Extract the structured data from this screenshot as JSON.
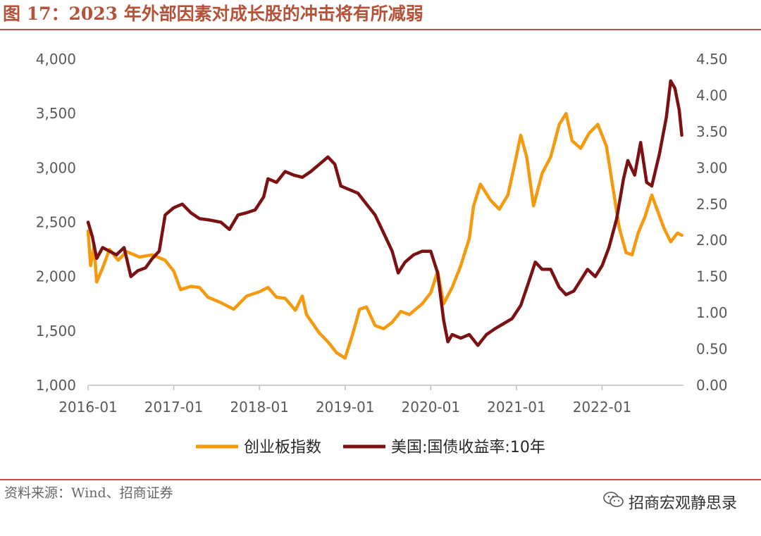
{
  "figure": {
    "title": "图 17：2023 年外部因素对成长股的冲击将有所减弱",
    "source": "资料来源：Wind、招商证券",
    "watermark": "招商宏观静思录"
  },
  "colors": {
    "accent": "#c0504d",
    "title": "#b5533a",
    "series_chinext": "#f59a0f",
    "series_ust": "#7b1113",
    "axis": "#bfbfbf",
    "tick_text": "#595959"
  },
  "chart_data": {
    "type": "line",
    "title": "",
    "xlabel": "",
    "x_ticks": [
      "2016-01",
      "2017-01",
      "2018-01",
      "2019-01",
      "2020-01",
      "2021-01",
      "2022-01"
    ],
    "x_range": [
      2016.0,
      2022.95
    ],
    "y_left": {
      "range": [
        1000,
        4000
      ],
      "ticks": [
        "1,000",
        "1,500",
        "2,000",
        "2,500",
        "3,000",
        "3,500",
        "4,000"
      ]
    },
    "y_right": {
      "range": [
        0,
        4.5
      ],
      "ticks": [
        "0.00",
        "0.50",
        "1.00",
        "1.50",
        "2.00",
        "2.50",
        "3.00",
        "3.50",
        "4.00",
        "4.50"
      ]
    },
    "legend": [
      "创业板指数",
      "美国:国债收益率:10年"
    ],
    "series": [
      {
        "name": "创业板指数",
        "axis": "left",
        "points": [
          [
            2016.0,
            2420
          ],
          [
            2016.03,
            2100
          ],
          [
            2016.07,
            2280
          ],
          [
            2016.1,
            1950
          ],
          [
            2016.17,
            2080
          ],
          [
            2016.25,
            2250
          ],
          [
            2016.35,
            2150
          ],
          [
            2016.45,
            2230
          ],
          [
            2016.6,
            2180
          ],
          [
            2016.75,
            2200
          ],
          [
            2016.9,
            2150
          ],
          [
            2017.0,
            2050
          ],
          [
            2017.08,
            1880
          ],
          [
            2017.2,
            1910
          ],
          [
            2017.3,
            1900
          ],
          [
            2017.4,
            1810
          ],
          [
            2017.55,
            1760
          ],
          [
            2017.7,
            1700
          ],
          [
            2017.85,
            1820
          ],
          [
            2018.0,
            1860
          ],
          [
            2018.1,
            1900
          ],
          [
            2018.2,
            1810
          ],
          [
            2018.3,
            1800
          ],
          [
            2018.42,
            1690
          ],
          [
            2018.5,
            1820
          ],
          [
            2018.55,
            1650
          ],
          [
            2018.7,
            1480
          ],
          [
            2018.8,
            1400
          ],
          [
            2018.9,
            1300
          ],
          [
            2019.0,
            1250
          ],
          [
            2019.08,
            1450
          ],
          [
            2019.17,
            1700
          ],
          [
            2019.25,
            1720
          ],
          [
            2019.35,
            1550
          ],
          [
            2019.45,
            1520
          ],
          [
            2019.55,
            1580
          ],
          [
            2019.65,
            1680
          ],
          [
            2019.75,
            1650
          ],
          [
            2019.9,
            1750
          ],
          [
            2020.0,
            1850
          ],
          [
            2020.08,
            2050
          ],
          [
            2020.15,
            1750
          ],
          [
            2020.25,
            1900
          ],
          [
            2020.35,
            2100
          ],
          [
            2020.45,
            2350
          ],
          [
            2020.5,
            2650
          ],
          [
            2020.58,
            2850
          ],
          [
            2020.7,
            2700
          ],
          [
            2020.8,
            2620
          ],
          [
            2020.9,
            2750
          ],
          [
            2020.97,
            3000
          ],
          [
            2021.05,
            3300
          ],
          [
            2021.12,
            3100
          ],
          [
            2021.2,
            2650
          ],
          [
            2021.3,
            2950
          ],
          [
            2021.4,
            3100
          ],
          [
            2021.5,
            3400
          ],
          [
            2021.58,
            3500
          ],
          [
            2021.65,
            3250
          ],
          [
            2021.75,
            3180
          ],
          [
            2021.85,
            3320
          ],
          [
            2021.95,
            3400
          ],
          [
            2022.05,
            3200
          ],
          [
            2022.12,
            2850
          ],
          [
            2022.2,
            2450
          ],
          [
            2022.28,
            2220
          ],
          [
            2022.35,
            2200
          ],
          [
            2022.42,
            2400
          ],
          [
            2022.5,
            2550
          ],
          [
            2022.58,
            2750
          ],
          [
            2022.65,
            2600
          ],
          [
            2022.72,
            2450
          ],
          [
            2022.8,
            2320
          ],
          [
            2022.88,
            2400
          ],
          [
            2022.93,
            2380
          ]
        ]
      },
      {
        "name": "美国:国债收益率:10年",
        "axis": "right",
        "points": [
          [
            2016.0,
            2.25
          ],
          [
            2016.05,
            2.05
          ],
          [
            2016.1,
            1.75
          ],
          [
            2016.17,
            1.9
          ],
          [
            2016.25,
            1.85
          ],
          [
            2016.33,
            1.8
          ],
          [
            2016.42,
            1.9
          ],
          [
            2016.5,
            1.5
          ],
          [
            2016.58,
            1.58
          ],
          [
            2016.67,
            1.62
          ],
          [
            2016.75,
            1.75
          ],
          [
            2016.83,
            1.85
          ],
          [
            2016.9,
            2.35
          ],
          [
            2017.0,
            2.45
          ],
          [
            2017.1,
            2.5
          ],
          [
            2017.2,
            2.38
          ],
          [
            2017.3,
            2.3
          ],
          [
            2017.42,
            2.28
          ],
          [
            2017.55,
            2.25
          ],
          [
            2017.65,
            2.15
          ],
          [
            2017.75,
            2.35
          ],
          [
            2017.85,
            2.38
          ],
          [
            2017.95,
            2.42
          ],
          [
            2018.05,
            2.6
          ],
          [
            2018.1,
            2.85
          ],
          [
            2018.2,
            2.8
          ],
          [
            2018.3,
            2.95
          ],
          [
            2018.4,
            2.9
          ],
          [
            2018.5,
            2.87
          ],
          [
            2018.6,
            2.95
          ],
          [
            2018.7,
            3.05
          ],
          [
            2018.8,
            3.15
          ],
          [
            2018.88,
            3.05
          ],
          [
            2018.95,
            2.75
          ],
          [
            2019.05,
            2.7
          ],
          [
            2019.15,
            2.65
          ],
          [
            2019.25,
            2.5
          ],
          [
            2019.35,
            2.35
          ],
          [
            2019.45,
            2.1
          ],
          [
            2019.55,
            1.85
          ],
          [
            2019.62,
            1.55
          ],
          [
            2019.7,
            1.7
          ],
          [
            2019.8,
            1.8
          ],
          [
            2019.9,
            1.85
          ],
          [
            2020.0,
            1.85
          ],
          [
            2020.08,
            1.55
          ],
          [
            2020.15,
            0.9
          ],
          [
            2020.2,
            0.6
          ],
          [
            2020.25,
            0.7
          ],
          [
            2020.35,
            0.65
          ],
          [
            2020.45,
            0.7
          ],
          [
            2020.55,
            0.55
          ],
          [
            2020.65,
            0.7
          ],
          [
            2020.75,
            0.78
          ],
          [
            2020.85,
            0.85
          ],
          [
            2020.95,
            0.92
          ],
          [
            2021.05,
            1.1
          ],
          [
            2021.15,
            1.45
          ],
          [
            2021.22,
            1.7
          ],
          [
            2021.3,
            1.6
          ],
          [
            2021.4,
            1.6
          ],
          [
            2021.5,
            1.35
          ],
          [
            2021.58,
            1.25
          ],
          [
            2021.67,
            1.3
          ],
          [
            2021.75,
            1.45
          ],
          [
            2021.83,
            1.6
          ],
          [
            2021.92,
            1.5
          ],
          [
            2022.0,
            1.65
          ],
          [
            2022.08,
            1.9
          ],
          [
            2022.17,
            2.3
          ],
          [
            2022.25,
            2.85
          ],
          [
            2022.3,
            3.1
          ],
          [
            2022.38,
            2.9
          ],
          [
            2022.45,
            3.35
          ],
          [
            2022.52,
            2.8
          ],
          [
            2022.58,
            2.75
          ],
          [
            2022.67,
            3.2
          ],
          [
            2022.75,
            3.7
          ],
          [
            2022.8,
            4.2
          ],
          [
            2022.85,
            4.1
          ],
          [
            2022.9,
            3.8
          ],
          [
            2022.93,
            3.45
          ]
        ]
      }
    ]
  }
}
